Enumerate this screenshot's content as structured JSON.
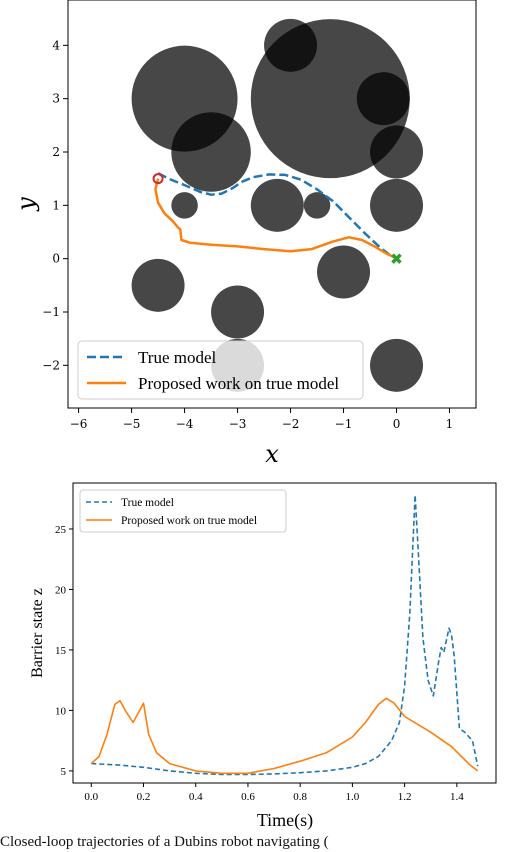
{
  "caption": "Closed-loop trajectories of a Dubins robot navigating (",
  "chart_data": [
    {
      "type": "scatter",
      "xlabel": "x",
      "ylabel": "y",
      "xlim": [
        -6.2,
        1.5
      ],
      "ylim": [
        -2.8,
        4.85
      ],
      "xticks": [
        -6,
        -5,
        -4,
        -3,
        -2,
        -1,
        0,
        1
      ],
      "yticks": [
        -2,
        -1,
        0,
        1,
        2,
        3,
        4
      ],
      "xtick_labels": [
        "−6",
        "−5",
        "−4",
        "−3",
        "−2",
        "−1",
        "0",
        "1"
      ],
      "ytick_labels": [
        "−2",
        "−1",
        "0",
        "1",
        "2",
        "3",
        "4"
      ],
      "grid": false,
      "legend_position": "lower-left",
      "obstacles": [
        {
          "x": -1.25,
          "y": 3.0,
          "r": 1.5
        },
        {
          "x": -4.0,
          "y": 3.0,
          "r": 1.0
        },
        {
          "x": -3.5,
          "y": 2.0,
          "r": 0.75
        },
        {
          "x": -2.0,
          "y": 4.0,
          "r": 0.5
        },
        {
          "x": -0.25,
          "y": 3.0,
          "r": 0.5
        },
        {
          "x": 0.0,
          "y": 2.0,
          "r": 0.5
        },
        {
          "x": 0.0,
          "y": 1.0,
          "r": 0.5
        },
        {
          "x": -2.25,
          "y": 1.0,
          "r": 0.5
        },
        {
          "x": -1.5,
          "y": 1.0,
          "r": 0.25
        },
        {
          "x": -4.0,
          "y": 1.0,
          "r": 0.25
        },
        {
          "x": -1.0,
          "y": -0.25,
          "r": 0.5
        },
        {
          "x": -4.5,
          "y": -0.5,
          "r": 0.5
        },
        {
          "x": -3.0,
          "y": -1.0,
          "r": 0.5
        },
        {
          "x": -3.0,
          "y": -2.0,
          "r": 0.5
        },
        {
          "x": 0.0,
          "y": -2.0,
          "r": 0.5
        }
      ],
      "start": {
        "x": -4.5,
        "y": 1.5,
        "color": "#d62728"
      },
      "goal": {
        "x": 0.0,
        "y": 0.0,
        "color": "#2ca02c"
      },
      "series": [
        {
          "name": "True model",
          "style": "dashed",
          "color": "#1f77b4",
          "points": [
            [
              -4.5,
              1.6
            ],
            [
              -4.3,
              1.5
            ],
            [
              -4.0,
              1.38
            ],
            [
              -3.7,
              1.25
            ],
            [
              -3.5,
              1.2
            ],
            [
              -3.3,
              1.22
            ],
            [
              -3.1,
              1.32
            ],
            [
              -2.9,
              1.45
            ],
            [
              -2.7,
              1.53
            ],
            [
              -2.4,
              1.58
            ],
            [
              -2.1,
              1.57
            ],
            [
              -1.8,
              1.48
            ],
            [
              -1.5,
              1.3
            ],
            [
              -1.2,
              1.08
            ],
            [
              -0.9,
              0.78
            ],
            [
              -0.6,
              0.48
            ],
            [
              -0.3,
              0.2
            ],
            [
              -0.1,
              0.05
            ]
          ]
        },
        {
          "name": "Proposed work on true model",
          "style": "solid",
          "color": "#ff7f0e",
          "points": [
            [
              -4.5,
              1.5
            ],
            [
              -4.55,
              1.3
            ],
            [
              -4.5,
              1.05
            ],
            [
              -4.38,
              0.85
            ],
            [
              -4.22,
              0.7
            ],
            [
              -4.12,
              0.58
            ],
            [
              -4.08,
              0.55
            ],
            [
              -4.06,
              0.35
            ],
            [
              -3.9,
              0.3
            ],
            [
              -3.5,
              0.26
            ],
            [
              -3.0,
              0.23
            ],
            [
              -2.5,
              0.18
            ],
            [
              -2.0,
              0.14
            ],
            [
              -1.6,
              0.18
            ],
            [
              -1.2,
              0.32
            ],
            [
              -0.9,
              0.4
            ],
            [
              -0.65,
              0.35
            ],
            [
              -0.4,
              0.22
            ],
            [
              -0.2,
              0.1
            ],
            [
              -0.05,
              0.03
            ],
            [
              0.0,
              0.0
            ]
          ]
        }
      ]
    },
    {
      "type": "line",
      "xlabel": "Time(s)",
      "ylabel": "Barrier state z",
      "xlim": [
        -0.07,
        1.55
      ],
      "ylim": [
        4.0,
        28.8
      ],
      "xticks": [
        0.0,
        0.2,
        0.4,
        0.6,
        0.8,
        1.0,
        1.2,
        1.4
      ],
      "yticks": [
        5,
        10,
        15,
        20,
        25
      ],
      "xtick_labels": [
        "0.0",
        "0.2",
        "0.4",
        "0.6",
        "0.8",
        "1.0",
        "1.2",
        "1.4"
      ],
      "ytick_labels": [
        "5",
        "10",
        "15",
        "20",
        "25"
      ],
      "grid": false,
      "legend_position": "top-left",
      "series": [
        {
          "name": "True model",
          "style": "dashed",
          "color": "#1f77b4",
          "x": [
            0.0,
            0.1,
            0.2,
            0.3,
            0.4,
            0.5,
            0.6,
            0.7,
            0.8,
            0.9,
            1.0,
            1.05,
            1.1,
            1.15,
            1.18,
            1.2,
            1.22,
            1.24,
            1.25,
            1.27,
            1.29,
            1.31,
            1.33,
            1.34,
            1.35,
            1.37,
            1.38,
            1.39,
            1.41,
            1.43,
            1.46,
            1.48
          ],
          "values": [
            5.6,
            5.5,
            5.3,
            5.0,
            4.8,
            4.7,
            4.7,
            4.75,
            4.85,
            5.0,
            5.3,
            5.6,
            6.2,
            7.5,
            9.0,
            12.0,
            18.0,
            27.8,
            24.0,
            16.0,
            12.5,
            11.2,
            14.0,
            15.2,
            14.8,
            16.8,
            16.2,
            14.5,
            8.5,
            8.2,
            7.5,
            5.4
          ]
        },
        {
          "name": "Proposed work on true model",
          "style": "solid",
          "color": "#ff7f0e",
          "x": [
            0.0,
            0.03,
            0.06,
            0.09,
            0.11,
            0.13,
            0.16,
            0.2,
            0.22,
            0.25,
            0.3,
            0.4,
            0.5,
            0.6,
            0.7,
            0.8,
            0.9,
            1.0,
            1.05,
            1.1,
            1.13,
            1.16,
            1.2,
            1.3,
            1.38,
            1.45,
            1.48
          ],
          "values": [
            5.6,
            6.2,
            8.0,
            10.5,
            10.8,
            10.0,
            9.0,
            10.6,
            8.0,
            6.5,
            5.6,
            5.0,
            4.8,
            4.8,
            5.2,
            5.8,
            6.5,
            7.8,
            9.0,
            10.5,
            11.0,
            10.6,
            9.5,
            8.2,
            7.0,
            5.5,
            5.0
          ]
        }
      ]
    }
  ]
}
